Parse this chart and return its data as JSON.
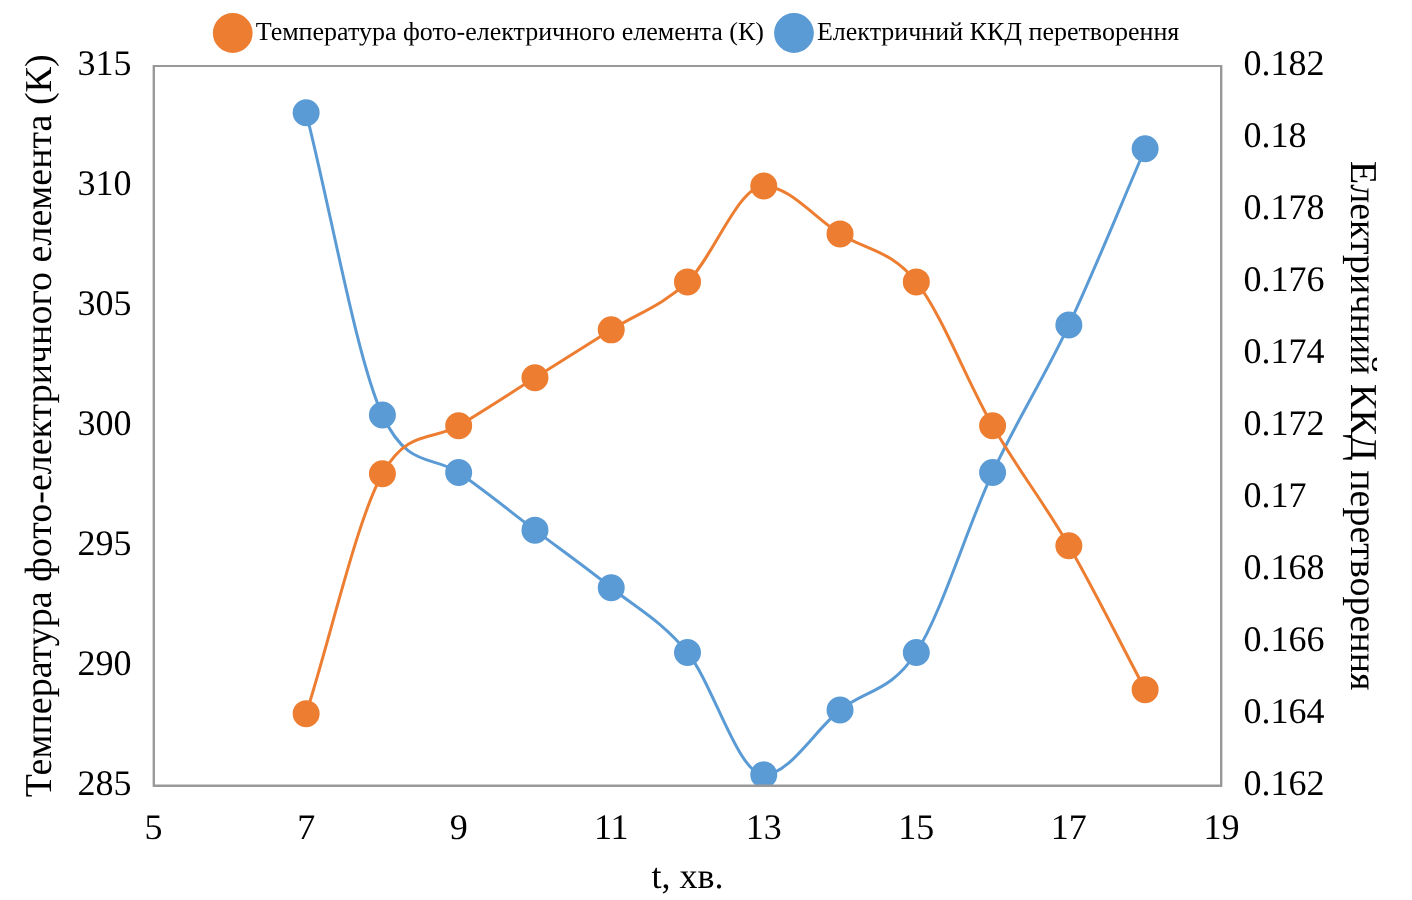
{
  "chart_data": {
    "type": "line",
    "xlabel": "t, хв.",
    "ylabel": "Температура фото-електричного елемента (К)",
    "y2label": "Електричний ККД перетворення",
    "x": [
      7,
      8,
      9,
      10,
      11,
      12,
      13,
      14,
      15,
      16,
      17,
      18
    ],
    "series": [
      {
        "name": "Температура фото-електричного елемента (К)",
        "color": "#ed7d31",
        "values": [
          288,
          298,
          300,
          302,
          304,
          306,
          310,
          308,
          306,
          300,
          295,
          289
        ]
      },
      {
        "name": "Електричний ККД перетворення",
        "color": "#5b9bd5",
        "axis": "y2",
        "values": [
          0.1807,
          0.1723,
          0.1707,
          0.1691,
          0.1675,
          0.1657,
          0.1623,
          0.1641,
          0.1657,
          0.1707,
          0.1748,
          0.1797
        ]
      }
    ],
    "xlim": [
      5,
      19
    ],
    "xticks": [
      5,
      7,
      9,
      11,
      13,
      15,
      17,
      19
    ],
    "ylim": [
      285,
      315
    ],
    "yticks": [
      285,
      290,
      295,
      300,
      305,
      310,
      315
    ],
    "y2lim": [
      0.162,
      0.182
    ],
    "y2ticks": [
      0.162,
      0.164,
      0.166,
      0.168,
      0.17,
      0.172,
      0.174,
      0.176,
      0.178,
      0.18,
      0.182
    ],
    "legend": "top",
    "marker": "circle",
    "grid": false
  }
}
